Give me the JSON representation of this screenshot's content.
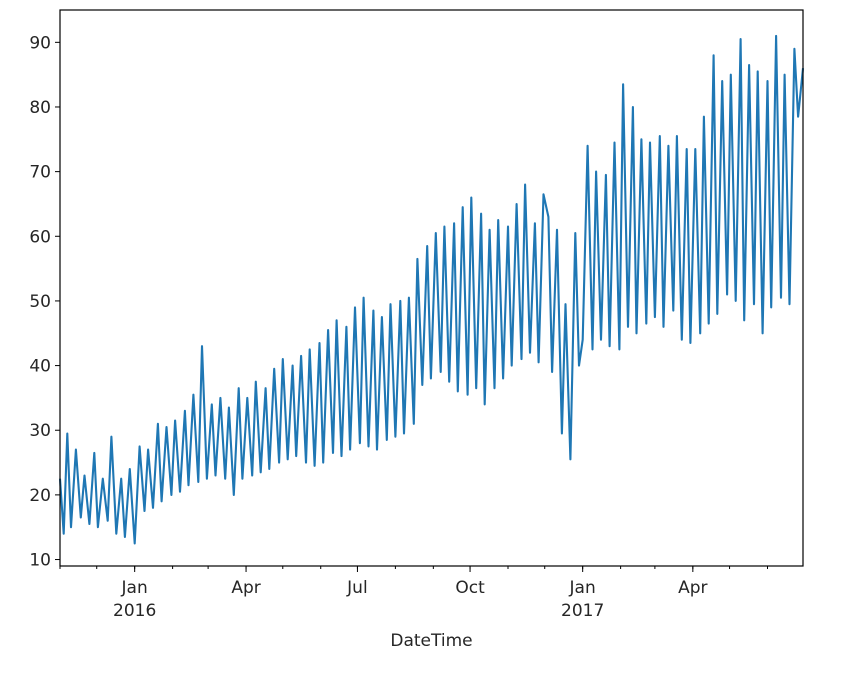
{
  "chart_data": {
    "type": "line",
    "title": "",
    "xlabel": "DateTime",
    "ylabel": "",
    "xlim": [
      "2015-11-01",
      "2017-06-30"
    ],
    "ylim": [
      9,
      95
    ],
    "grid": false,
    "line_color": "#1f77b4",
    "y_ticks": [
      "10",
      "20",
      "30",
      "40",
      "50",
      "60",
      "70",
      "80",
      "90"
    ],
    "x_ticks": [
      {
        "date": "2016-01-01",
        "label": "Jan",
        "sublabel": "2016"
      },
      {
        "date": "2016-04-01",
        "label": "Apr",
        "sublabel": ""
      },
      {
        "date": "2016-07-01",
        "label": "Jul",
        "sublabel": ""
      },
      {
        "date": "2016-10-01",
        "label": "Oct",
        "sublabel": ""
      },
      {
        "date": "2017-01-01",
        "label": "Jan",
        "sublabel": "2017"
      },
      {
        "date": "2017-04-01",
        "label": "Apr",
        "sublabel": ""
      }
    ],
    "series": [
      {
        "x": [
          "2015-11-01",
          "2015-11-04",
          "2015-11-07",
          "2015-11-10",
          "2015-11-14",
          "2015-11-18",
          "2015-11-21",
          "2015-11-25",
          "2015-11-29",
          "2015-12-02",
          "2015-12-06",
          "2015-12-10",
          "2015-12-13",
          "2015-12-17",
          "2015-12-21",
          "2015-12-24",
          "2015-12-28",
          "2016-01-01",
          "2016-01-05",
          "2016-01-09",
          "2016-01-12",
          "2016-01-16",
          "2016-01-20",
          "2016-01-23",
          "2016-01-27",
          "2016-01-31",
          "2016-02-03",
          "2016-02-07",
          "2016-02-11",
          "2016-02-14",
          "2016-02-18",
          "2016-02-22",
          "2016-02-25",
          "2016-02-29",
          "2016-03-04",
          "2016-03-07",
          "2016-03-11",
          "2016-03-15",
          "2016-03-18",
          "2016-03-22",
          "2016-03-26",
          "2016-03-29",
          "2016-04-02",
          "2016-04-06",
          "2016-04-09",
          "2016-04-13",
          "2016-04-17",
          "2016-04-20",
          "2016-04-24",
          "2016-04-28",
          "2016-05-01",
          "2016-05-05",
          "2016-05-09",
          "2016-05-12",
          "2016-05-16",
          "2016-05-20",
          "2016-05-23",
          "2016-05-27",
          "2016-05-31",
          "2016-06-03",
          "2016-06-07",
          "2016-06-11",
          "2016-06-14",
          "2016-06-18",
          "2016-06-22",
          "2016-06-25",
          "2016-06-29",
          "2016-07-03",
          "2016-07-06",
          "2016-07-10",
          "2016-07-14",
          "2016-07-17",
          "2016-07-21",
          "2016-07-25",
          "2016-07-28",
          "2016-08-01",
          "2016-08-05",
          "2016-08-08",
          "2016-08-12",
          "2016-08-16",
          "2016-08-19",
          "2016-08-23",
          "2016-08-27",
          "2016-08-30",
          "2016-09-03",
          "2016-09-07",
          "2016-09-10",
          "2016-09-14",
          "2016-09-18",
          "2016-09-21",
          "2016-09-25",
          "2016-09-29",
          "2016-10-02",
          "2016-10-06",
          "2016-10-10",
          "2016-10-13",
          "2016-10-17",
          "2016-10-21",
          "2016-10-24",
          "2016-10-28",
          "2016-11-01",
          "2016-11-04",
          "2016-11-08",
          "2016-11-12",
          "2016-11-15",
          "2016-11-19",
          "2016-11-23",
          "2016-11-26",
          "2016-11-30",
          "2016-12-04",
          "2016-12-07",
          "2016-12-11",
          "2016-12-15",
          "2016-12-18",
          "2016-12-22",
          "2016-12-26",
          "2016-12-29",
          "2017-01-01",
          "2017-01-05",
          "2017-01-09",
          "2017-01-12",
          "2017-01-16",
          "2017-01-20",
          "2017-01-23",
          "2017-01-27",
          "2017-01-31",
          "2017-02-03",
          "2017-02-07",
          "2017-02-11",
          "2017-02-14",
          "2017-02-18",
          "2017-02-22",
          "2017-02-25",
          "2017-03-01",
          "2017-03-05",
          "2017-03-08",
          "2017-03-12",
          "2017-03-16",
          "2017-03-19",
          "2017-03-23",
          "2017-03-27",
          "2017-03-30",
          "2017-04-03",
          "2017-04-07",
          "2017-04-10",
          "2017-04-14",
          "2017-04-18",
          "2017-04-21",
          "2017-04-25",
          "2017-04-29",
          "2017-05-02",
          "2017-05-06",
          "2017-05-10",
          "2017-05-13",
          "2017-05-17",
          "2017-05-21",
          "2017-05-24",
          "2017-05-28",
          "2017-06-01",
          "2017-06-04",
          "2017-06-08",
          "2017-06-12",
          "2017-06-15",
          "2017-06-19",
          "2017-06-23",
          "2017-06-26",
          "2017-06-30"
        ],
        "y": [
          22.5,
          14.0,
          29.5,
          15.0,
          27.0,
          16.5,
          23.0,
          15.5,
          26.5,
          15.0,
          22.5,
          16.0,
          29.0,
          14.0,
          22.5,
          13.5,
          24.0,
          12.5,
          27.5,
          17.5,
          27.0,
          18.0,
          31.0,
          19.0,
          30.5,
          20.0,
          31.5,
          20.5,
          33.0,
          21.5,
          35.5,
          22.0,
          43.0,
          22.5,
          34.0,
          23.0,
          35.0,
          22.5,
          33.5,
          20.0,
          36.5,
          22.5,
          35.0,
          23.0,
          37.5,
          23.5,
          36.5,
          24.0,
          39.5,
          25.0,
          41.0,
          25.5,
          40.0,
          26.0,
          41.5,
          25.0,
          42.5,
          24.5,
          43.5,
          25.0,
          45.5,
          26.5,
          47.0,
          26.0,
          46.0,
          27.0,
          49.0,
          28.0,
          50.5,
          27.5,
          48.5,
          27.0,
          47.5,
          28.5,
          49.5,
          29.0,
          50.0,
          29.5,
          50.5,
          31.0,
          56.5,
          37.0,
          58.5,
          38.0,
          60.5,
          39.0,
          61.5,
          37.5,
          62.0,
          36.0,
          64.5,
          35.5,
          66.0,
          36.5,
          63.5,
          34.0,
          61.0,
          36.5,
          62.5,
          38.0,
          61.5,
          40.0,
          65.0,
          41.0,
          68.0,
          42.0,
          62.0,
          40.5,
          66.5,
          63.0,
          39.0,
          61.0,
          29.5,
          49.5,
          25.5,
          60.5,
          40.0,
          44.0,
          74.0,
          42.5,
          70.0,
          44.0,
          69.5,
          43.0,
          74.5,
          42.5,
          83.5,
          46.0,
          80.0,
          45.0,
          75.0,
          46.5,
          74.5,
          47.5,
          75.5,
          46.0,
          74.0,
          48.5,
          75.5,
          44.0,
          73.5,
          43.5,
          73.5,
          45.0,
          78.5,
          46.5,
          88.0,
          48.0,
          84.0,
          51.0,
          85.0,
          50.0,
          90.5,
          47.0,
          86.5,
          49.5,
          85.5,
          45.0,
          84.0,
          49.0,
          91.0,
          50.5,
          85.0,
          49.5,
          89.0,
          78.5,
          86.0
        ]
      }
    ]
  }
}
